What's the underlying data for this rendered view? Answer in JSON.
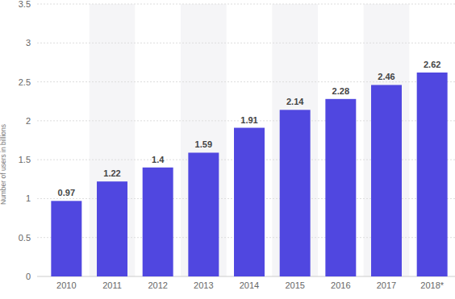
{
  "chart_data": {
    "type": "bar",
    "ylabel": "Number of users in billions",
    "categories": [
      "2010",
      "2011",
      "2012",
      "2013",
      "2014",
      "2015",
      "2016",
      "2017",
      "2018*"
    ],
    "values": [
      0.97,
      1.22,
      1.4,
      1.59,
      1.91,
      2.14,
      2.28,
      2.46,
      2.62
    ],
    "color": "#5047e0",
    "ylim": [
      0,
      3.5
    ],
    "yticks": [
      0,
      0.5,
      1,
      1.5,
      2,
      2.5,
      3,
      3.5
    ],
    "grid": true,
    "data_labels": true
  }
}
